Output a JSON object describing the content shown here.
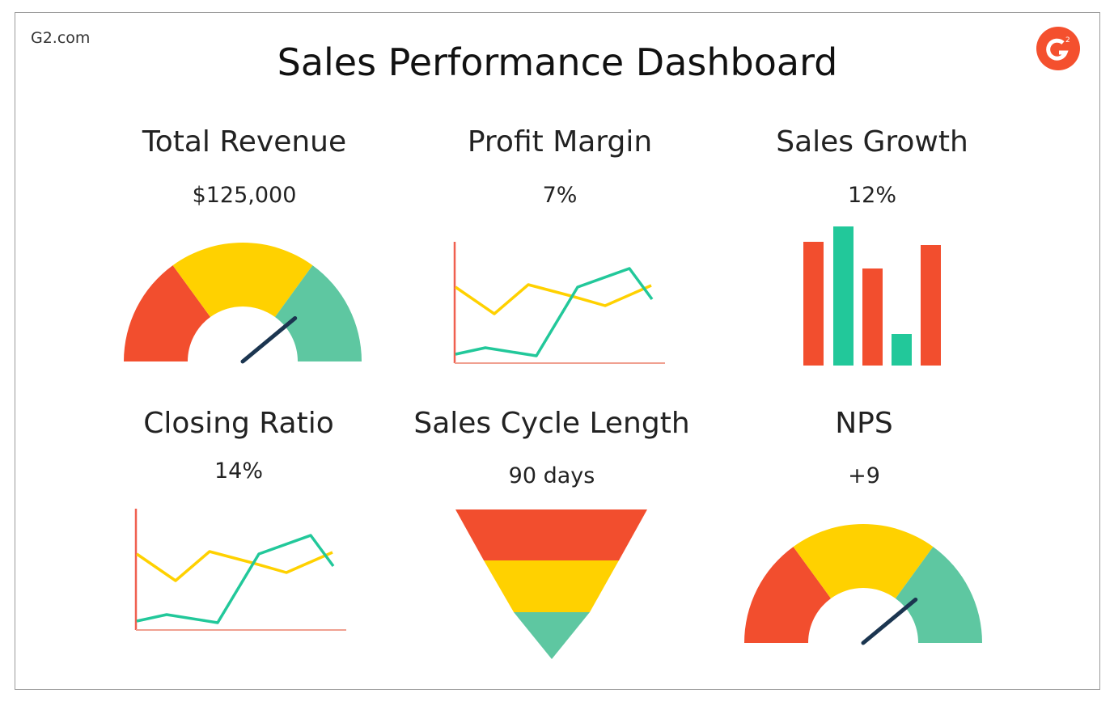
{
  "site": "G2.com",
  "title": "Sales Performance Dashboard",
  "logo_text": "G2",
  "colors": {
    "red": "#F24E2E",
    "yellow": "#FFD100",
    "teal": "#22C89A",
    "gauge_teal": "#5EC7A1",
    "needle": "#1B3550",
    "axis": "#F0A090"
  },
  "panels": [
    {
      "label": "Total Revenue",
      "value": "$125,000",
      "visual": "gauge",
      "level": 0.78
    },
    {
      "label": "Profit Margin",
      "value": "7%",
      "visual": "line"
    },
    {
      "label": "Sales Growth",
      "value": "12%",
      "visual": "bar"
    },
    {
      "label": "Closing Ratio",
      "value": "14%",
      "visual": "line"
    },
    {
      "label": "Sales Cycle Length",
      "value": "90 days",
      "visual": "funnel"
    },
    {
      "label": "NPS",
      "value": "+9",
      "visual": "gauge",
      "level": 0.78
    }
  ]
}
